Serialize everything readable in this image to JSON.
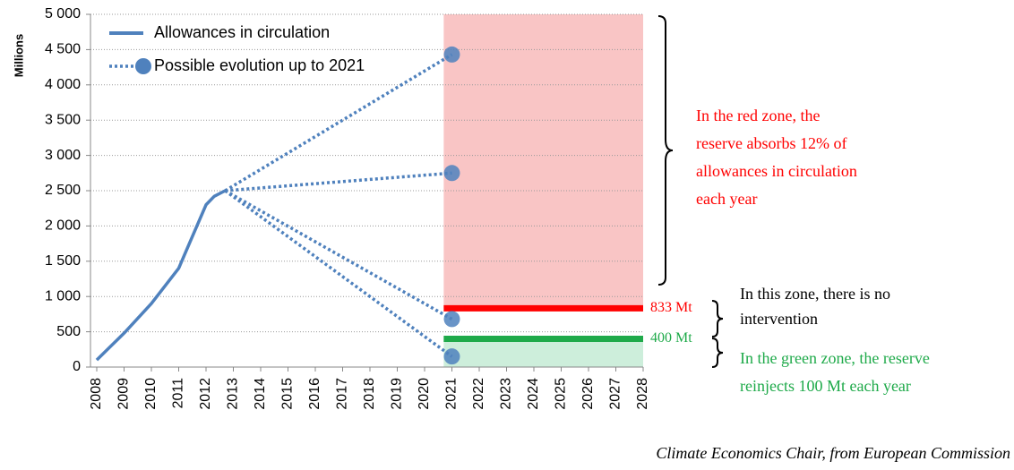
{
  "chart_data": {
    "type": "line",
    "ylabel": "Millions",
    "xlim": [
      2008,
      2028
    ],
    "xticks": [
      2008,
      2009,
      2010,
      2011,
      2012,
      2013,
      2014,
      2015,
      2016,
      2017,
      2018,
      2019,
      2020,
      2021,
      2022,
      2023,
      2024,
      2025,
      2026,
      2027,
      2028
    ],
    "ylim": [
      0,
      5000
    ],
    "yticks": [
      0,
      500,
      {
        "value": 1000,
        "label": "1 000"
      },
      {
        "value": 1500,
        "label": "1 500"
      },
      {
        "value": 2000,
        "label": "2 000"
      },
      {
        "value": 2500,
        "label": "2 500"
      },
      {
        "value": 3000,
        "label": "3 000"
      },
      {
        "value": 3500,
        "label": "3 500"
      },
      {
        "value": 4000,
        "label": "4 000"
      },
      {
        "value": 4500,
        "label": "4 500"
      },
      {
        "value": 5000,
        "label": "5 000"
      }
    ],
    "grid": true,
    "series": [
      {
        "name": "Allowances in circulation",
        "color": "#4f81bd",
        "x": [
          2008,
          2009,
          2010,
          2011,
          2011.5,
          2012,
          2012.3,
          2012.7
        ],
        "values": [
          100,
          480,
          900,
          1400,
          1850,
          2300,
          2420,
          2500
        ]
      },
      {
        "name": "Possible evolution up to 2021",
        "color": "#4f81bd",
        "scenarios": [
          {
            "x": [
              2012.7,
              2021
            ],
            "values": [
              2500,
              4430
            ]
          },
          {
            "x": [
              2012.7,
              2021
            ],
            "values": [
              2500,
              2750
            ]
          },
          {
            "x": [
              2012.7,
              2021
            ],
            "values": [
              2500,
              680
            ]
          },
          {
            "x": [
              2012.7,
              2021
            ],
            "values": [
              2500,
              150
            ]
          }
        ]
      }
    ],
    "zones": [
      {
        "xmin": 2020.7,
        "xmax": 2028,
        "ymin": 833,
        "ymax": 5000,
        "color": "#f9c5c5"
      },
      {
        "xmin": 2020.7,
        "xmax": 2028,
        "ymin": 0,
        "ymax": 400,
        "color": "#cdeedb"
      }
    ],
    "thresholds": [
      {
        "value": 833,
        "label": "833 Mt",
        "color": "#ff0000"
      },
      {
        "value": 400,
        "label": "400 Mt",
        "color": "#1faa4a"
      }
    ],
    "annotations": [
      {
        "lines": [
          "In the red zone, the",
          "reserve absorbs 12% of",
          "allowances in circulation",
          "each year"
        ],
        "color": "#ff0000"
      },
      {
        "lines": [
          "In this zone, there is no",
          "intervention"
        ],
        "color": "#000000"
      },
      {
        "lines": [
          "In the green zone, the reserve",
          "reinjects 100 Mt each year"
        ],
        "color": "#1faa4a"
      }
    ],
    "source": "Climate Economics Chair, from European Commission"
  }
}
